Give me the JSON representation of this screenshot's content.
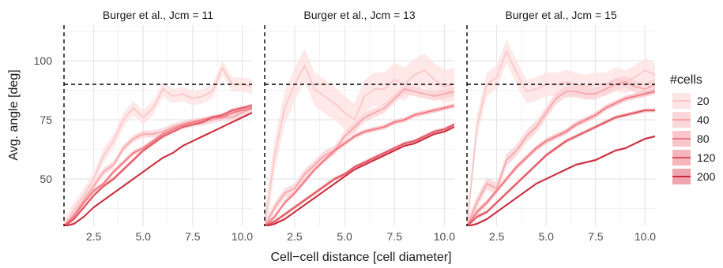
{
  "chart_data": {
    "type": "line",
    "xlabel": "Cell−cell distance [cell diameter]",
    "ylabel": "Avg. angle [deg]",
    "xlim": [
      1.0,
      10.5
    ],
    "ylim": [
      30,
      115
    ],
    "x_ticks": [
      "2.5",
      "5.0",
      "7.5",
      "10.0"
    ],
    "x_tick_values": [
      2.5,
      5.0,
      7.5,
      10.0
    ],
    "y_ticks": [
      "50",
      "75",
      "100"
    ],
    "y_tick_values": [
      50,
      75,
      100
    ],
    "reference_lines": {
      "x": 1.0,
      "y": 90
    },
    "grid": true,
    "legend": {
      "title": "#cells",
      "placement": "right",
      "entries": [
        "20",
        "40",
        "80",
        "120",
        "200"
      ],
      "colors": [
        "#fcc5c5",
        "#f7a2a6",
        "#f0767f",
        "#e0505c",
        "#c8293a"
      ],
      "ribbon_colors": [
        "#fde0e0",
        "#fbd0d3",
        "#f8bcc2",
        "#f2a8b0",
        "#eb95a0"
      ]
    },
    "facets": [
      {
        "title": "Burger et al., Jcm = 11",
        "series": [
          {
            "name": "20",
            "x": [
              1.0,
              1.5,
              2.0,
              2.5,
              3.0,
              3.5,
              4.0,
              4.5,
              5.0,
              5.5,
              6.0,
              6.5,
              7.0,
              7.5,
              8.0,
              8.5,
              9.0,
              9.5,
              10.0,
              10.5
            ],
            "y": [
              30,
              37,
              43,
              50,
              60,
              66,
              75,
              80,
              76,
              80,
              88,
              85,
              86,
              84,
              85,
              87,
              97,
              90,
              90,
              89
            ],
            "band": 3
          },
          {
            "name": "40",
            "x": [
              1.0,
              1.5,
              2.0,
              2.5,
              3.0,
              3.5,
              4.0,
              4.5,
              5.0,
              5.5,
              6.0,
              6.5,
              7.0,
              7.5,
              8.0,
              8.5,
              9.0,
              9.5,
              10.0,
              10.5
            ],
            "y": [
              30,
              35,
              41,
              47,
              53,
              56,
              63,
              67,
              69,
              69,
              70,
              72,
              73,
              74,
              74,
              75,
              76,
              76,
              78,
              80
            ],
            "band": 1.5
          },
          {
            "name": "80",
            "x": [
              1.0,
              1.5,
              2.0,
              2.5,
              3.0,
              3.5,
              4.0,
              4.5,
              5.0,
              5.5,
              6.0,
              6.5,
              7.0,
              7.5,
              8.0,
              8.5,
              9.0,
              9.5,
              10.0,
              10.5
            ],
            "y": [
              30,
              34,
              40,
              45,
              48,
              53,
              57,
              61,
              63,
              66,
              69,
              71,
              73,
              74,
              75,
              76,
              76,
              78,
              79,
              80
            ],
            "band": 1
          },
          {
            "name": "120",
            "x": [
              1.0,
              1.5,
              2.0,
              2.5,
              3.0,
              3.5,
              4.0,
              4.5,
              5.0,
              5.5,
              6.0,
              6.5,
              7.0,
              7.5,
              8.0,
              8.5,
              9.0,
              9.5,
              10.0,
              10.5
            ],
            "y": [
              30,
              33,
              38,
              43,
              47,
              50,
              54,
              58,
              62,
              65,
              68,
              70,
              72,
              73,
              74,
              76,
              77,
              79,
              80,
              81
            ],
            "band": 0.8
          },
          {
            "name": "200",
            "x": [
              1.0,
              1.5,
              2.0,
              2.5,
              3.0,
              3.5,
              4.0,
              4.5,
              5.0,
              5.5,
              6.0,
              6.5,
              7.0,
              7.5,
              8.0,
              8.5,
              9.0,
              9.5,
              10.0,
              10.5
            ],
            "y": [
              30,
              31,
              34,
              38,
              41,
              44,
              47,
              50,
              53,
              56,
              59,
              61,
              64,
              66,
              68,
              70,
              72,
              74,
              76,
              78
            ],
            "band": 0.5
          }
        ]
      },
      {
        "title": "Burger et al., Jcm = 13",
        "series": [
          {
            "name": "20",
            "x": [
              1.0,
              1.5,
              2.0,
              2.5,
              3.0,
              3.5,
              4.0,
              4.5,
              5.0,
              5.5,
              6.0,
              6.5,
              7.0,
              7.5,
              8.0,
              8.5,
              9.0,
              9.5,
              10.0,
              10.5
            ],
            "y": [
              30,
              60,
              80,
              90,
              98,
              88,
              85,
              82,
              78,
              75,
              85,
              88,
              88,
              92,
              90,
              94,
              96,
              92,
              89,
              90
            ],
            "band": 7
          },
          {
            "name": "40",
            "x": [
              1.0,
              1.5,
              2.0,
              2.5,
              3.0,
              3.5,
              4.0,
              4.5,
              5.0,
              5.5,
              6.0,
              6.5,
              7.0,
              7.5,
              8.0,
              8.5,
              9.0,
              9.5,
              10.0,
              10.5
            ],
            "y": [
              30,
              38,
              44,
              46,
              52,
              56,
              60,
              62,
              68,
              72,
              76,
              78,
              80,
              84,
              88,
              87,
              86,
              85,
              86,
              87
            ],
            "band": 2
          },
          {
            "name": "80",
            "x": [
              1.0,
              1.5,
              2.0,
              2.5,
              3.0,
              3.5,
              4.0,
              4.5,
              5.0,
              5.5,
              6.0,
              6.5,
              7.0,
              7.5,
              8.0,
              8.5,
              9.0,
              9.5,
              10.0,
              10.5
            ],
            "y": [
              30,
              34,
              40,
              44,
              49,
              54,
              58,
              62,
              65,
              68,
              70,
              71,
              72,
              74,
              75,
              77,
              78,
              79,
              80,
              81
            ],
            "band": 1
          },
          {
            "name": "120",
            "x": [
              1.0,
              1.5,
              2.0,
              2.5,
              3.0,
              3.5,
              4.0,
              4.5,
              5.0,
              5.5,
              6.0,
              6.5,
              7.0,
              7.5,
              8.0,
              8.5,
              9.0,
              9.5,
              10.0,
              10.5
            ],
            "y": [
              30,
              32,
              35,
              38,
              41,
              44,
              47,
              50,
              52,
              55,
              57,
              59,
              61,
              63,
              65,
              66,
              68,
              70,
              71,
              73
            ],
            "band": 0.8
          },
          {
            "name": "200",
            "x": [
              1.0,
              1.5,
              2.0,
              2.5,
              3.0,
              3.5,
              4.0,
              4.5,
              5.0,
              5.5,
              6.0,
              6.5,
              7.0,
              7.5,
              8.0,
              8.5,
              9.0,
              9.5,
              10.0,
              10.5
            ],
            "y": [
              30,
              31,
              33,
              36,
              39,
              42,
              45,
              48,
              51,
              54,
              56,
              58,
              60,
              62,
              64,
              65,
              67,
              69,
              70,
              72
            ],
            "band": 0.5
          }
        ]
      },
      {
        "title": "Burger et al., Jcm = 15",
        "series": [
          {
            "name": "20",
            "x": [
              1.0,
              1.5,
              2.0,
              2.5,
              3.0,
              3.5,
              4.0,
              4.5,
              5.0,
              5.5,
              6.0,
              6.5,
              7.0,
              7.5,
              8.0,
              8.5,
              9.0,
              9.5,
              10.0,
              10.5
            ],
            "y": [
              30,
              72,
              90,
              93,
              104,
              95,
              87,
              88,
              90,
              90,
              91,
              90,
              89,
              90,
              90,
              92,
              91,
              93,
              96,
              94
            ],
            "band": 5
          },
          {
            "name": "40",
            "x": [
              1.0,
              1.5,
              2.0,
              2.5,
              3.0,
              3.5,
              4.0,
              4.5,
              5.0,
              5.5,
              6.0,
              6.5,
              7.0,
              7.5,
              8.0,
              8.5,
              9.0,
              9.5,
              10.0,
              10.5
            ],
            "y": [
              30,
              40,
              48,
              46,
              58,
              62,
              68,
              72,
              78,
              84,
              87,
              87,
              86,
              86,
              88,
              90,
              91,
              89,
              88,
              90
            ],
            "band": 2.5
          },
          {
            "name": "80",
            "x": [
              1.0,
              1.5,
              2.0,
              2.5,
              3.0,
              3.5,
              4.0,
              4.5,
              5.0,
              5.5,
              6.0,
              6.5,
              7.0,
              7.5,
              8.0,
              8.5,
              9.0,
              9.5,
              10.0,
              10.5
            ],
            "y": [
              30,
              36,
              40,
              45,
              50,
              55,
              59,
              63,
              66,
              68,
              70,
              73,
              75,
              77,
              80,
              82,
              84,
              85,
              86,
              87
            ],
            "band": 1.2
          },
          {
            "name": "120",
            "x": [
              1.0,
              1.5,
              2.0,
              2.5,
              3.0,
              3.5,
              4.0,
              4.5,
              5.0,
              5.5,
              6.0,
              6.5,
              7.0,
              7.5,
              8.0,
              8.5,
              9.0,
              9.5,
              10.0,
              10.5
            ],
            "y": [
              30,
              34,
              36,
              40,
              44,
              48,
              52,
              56,
              60,
              63,
              66,
              68,
              70,
              72,
              74,
              76,
              77,
              78,
              79,
              79
            ],
            "band": 0.8
          },
          {
            "name": "200",
            "x": [
              1.0,
              1.5,
              2.0,
              2.5,
              3.0,
              3.5,
              4.0,
              4.5,
              5.0,
              5.5,
              6.0,
              6.5,
              7.0,
              7.5,
              8.0,
              8.5,
              9.0,
              9.5,
              10.0,
              10.5
            ],
            "y": [
              30,
              31,
              33,
              36,
              39,
              42,
              45,
              48,
              50,
              52,
              54,
              56,
              57,
              58,
              60,
              62,
              63,
              65,
              67,
              68
            ],
            "band": 0.5
          }
        ]
      }
    ]
  }
}
